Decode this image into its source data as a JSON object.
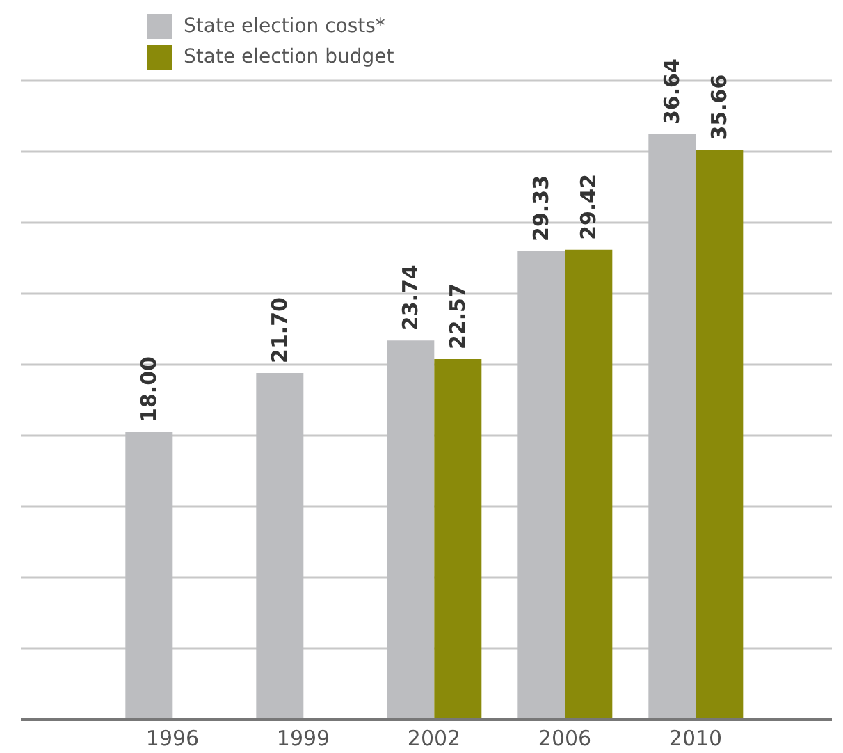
{
  "chart_data": {
    "type": "bar",
    "categories": [
      "1996",
      "1999",
      "2002",
      "2006",
      "2010"
    ],
    "series": [
      {
        "name": "State election costs*",
        "color": "#bcbdc0",
        "values": [
          18.0,
          21.7,
          23.74,
          29.33,
          36.64
        ],
        "value_labels": [
          "18.00",
          "21.70",
          "23.74",
          "29.33",
          "36.64"
        ]
      },
      {
        "name": "State election budget",
        "color": "#8a8a0a",
        "values": [
          null,
          null,
          22.57,
          29.42,
          35.66
        ],
        "value_labels": [
          null,
          null,
          "22.57",
          "29.42",
          "35.66"
        ]
      }
    ],
    "ylim": [
      0,
      40
    ],
    "yticks": [
      {
        "value": 0,
        "label": null
      },
      {
        "value": 4.44,
        "label": null
      },
      {
        "value": 8.89,
        "label": null
      },
      {
        "value": 13.33,
        "label": null
      },
      {
        "value": 17.78,
        "label": null
      },
      {
        "value": 22.22,
        "label": null
      },
      {
        "value": 26.67,
        "label": null
      },
      {
        "value": 31.11,
        "label": null
      },
      {
        "value": 35.56,
        "label": null
      },
      {
        "value": 40,
        "label": null
      }
    ],
    "grid": "y",
    "legend": "top left"
  }
}
